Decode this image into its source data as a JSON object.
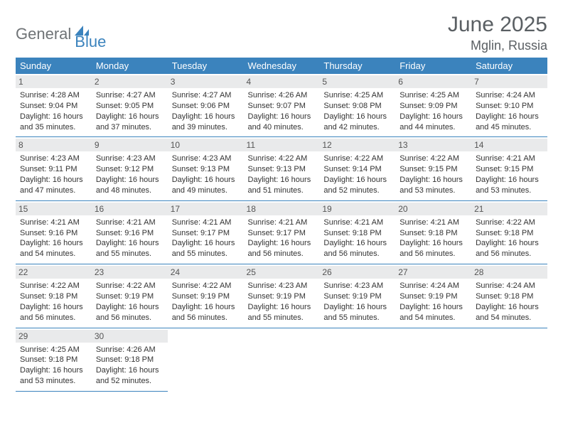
{
  "logo": {
    "part1": "General",
    "part2": "Blue"
  },
  "title": "June 2025",
  "location": "Mglin, Russia",
  "colors": {
    "header_bg": "#3b83bd",
    "header_text": "#ffffff",
    "daynum_bg": "#e9eaeb",
    "border": "#3b83bd",
    "page_bg": "#ffffff",
    "title_color": "#5a5f63",
    "logo_gray": "#6f7376",
    "logo_blue": "#3b83bd",
    "body_text": "#333333"
  },
  "typography": {
    "title_fontsize": 30,
    "location_fontsize": 18,
    "dayheader_fontsize": 13,
    "daynum_fontsize": 12,
    "cell_fontsize": 11
  },
  "day_headers": [
    "Sunday",
    "Monday",
    "Tuesday",
    "Wednesday",
    "Thursday",
    "Friday",
    "Saturday"
  ],
  "weeks": [
    [
      {
        "num": "1",
        "sunrise": "Sunrise: 4:28 AM",
        "sunset": "Sunset: 9:04 PM",
        "daylight1": "Daylight: 16 hours",
        "daylight2": "and 35 minutes."
      },
      {
        "num": "2",
        "sunrise": "Sunrise: 4:27 AM",
        "sunset": "Sunset: 9:05 PM",
        "daylight1": "Daylight: 16 hours",
        "daylight2": "and 37 minutes."
      },
      {
        "num": "3",
        "sunrise": "Sunrise: 4:27 AM",
        "sunset": "Sunset: 9:06 PM",
        "daylight1": "Daylight: 16 hours",
        "daylight2": "and 39 minutes."
      },
      {
        "num": "4",
        "sunrise": "Sunrise: 4:26 AM",
        "sunset": "Sunset: 9:07 PM",
        "daylight1": "Daylight: 16 hours",
        "daylight2": "and 40 minutes."
      },
      {
        "num": "5",
        "sunrise": "Sunrise: 4:25 AM",
        "sunset": "Sunset: 9:08 PM",
        "daylight1": "Daylight: 16 hours",
        "daylight2": "and 42 minutes."
      },
      {
        "num": "6",
        "sunrise": "Sunrise: 4:25 AM",
        "sunset": "Sunset: 9:09 PM",
        "daylight1": "Daylight: 16 hours",
        "daylight2": "and 44 minutes."
      },
      {
        "num": "7",
        "sunrise": "Sunrise: 4:24 AM",
        "sunset": "Sunset: 9:10 PM",
        "daylight1": "Daylight: 16 hours",
        "daylight2": "and 45 minutes."
      }
    ],
    [
      {
        "num": "8",
        "sunrise": "Sunrise: 4:23 AM",
        "sunset": "Sunset: 9:11 PM",
        "daylight1": "Daylight: 16 hours",
        "daylight2": "and 47 minutes."
      },
      {
        "num": "9",
        "sunrise": "Sunrise: 4:23 AM",
        "sunset": "Sunset: 9:12 PM",
        "daylight1": "Daylight: 16 hours",
        "daylight2": "and 48 minutes."
      },
      {
        "num": "10",
        "sunrise": "Sunrise: 4:23 AM",
        "sunset": "Sunset: 9:13 PM",
        "daylight1": "Daylight: 16 hours",
        "daylight2": "and 49 minutes."
      },
      {
        "num": "11",
        "sunrise": "Sunrise: 4:22 AM",
        "sunset": "Sunset: 9:13 PM",
        "daylight1": "Daylight: 16 hours",
        "daylight2": "and 51 minutes."
      },
      {
        "num": "12",
        "sunrise": "Sunrise: 4:22 AM",
        "sunset": "Sunset: 9:14 PM",
        "daylight1": "Daylight: 16 hours",
        "daylight2": "and 52 minutes."
      },
      {
        "num": "13",
        "sunrise": "Sunrise: 4:22 AM",
        "sunset": "Sunset: 9:15 PM",
        "daylight1": "Daylight: 16 hours",
        "daylight2": "and 53 minutes."
      },
      {
        "num": "14",
        "sunrise": "Sunrise: 4:21 AM",
        "sunset": "Sunset: 9:15 PM",
        "daylight1": "Daylight: 16 hours",
        "daylight2": "and 53 minutes."
      }
    ],
    [
      {
        "num": "15",
        "sunrise": "Sunrise: 4:21 AM",
        "sunset": "Sunset: 9:16 PM",
        "daylight1": "Daylight: 16 hours",
        "daylight2": "and 54 minutes."
      },
      {
        "num": "16",
        "sunrise": "Sunrise: 4:21 AM",
        "sunset": "Sunset: 9:16 PM",
        "daylight1": "Daylight: 16 hours",
        "daylight2": "and 55 minutes."
      },
      {
        "num": "17",
        "sunrise": "Sunrise: 4:21 AM",
        "sunset": "Sunset: 9:17 PM",
        "daylight1": "Daylight: 16 hours",
        "daylight2": "and 55 minutes."
      },
      {
        "num": "18",
        "sunrise": "Sunrise: 4:21 AM",
        "sunset": "Sunset: 9:17 PM",
        "daylight1": "Daylight: 16 hours",
        "daylight2": "and 56 minutes."
      },
      {
        "num": "19",
        "sunrise": "Sunrise: 4:21 AM",
        "sunset": "Sunset: 9:18 PM",
        "daylight1": "Daylight: 16 hours",
        "daylight2": "and 56 minutes."
      },
      {
        "num": "20",
        "sunrise": "Sunrise: 4:21 AM",
        "sunset": "Sunset: 9:18 PM",
        "daylight1": "Daylight: 16 hours",
        "daylight2": "and 56 minutes."
      },
      {
        "num": "21",
        "sunrise": "Sunrise: 4:22 AM",
        "sunset": "Sunset: 9:18 PM",
        "daylight1": "Daylight: 16 hours",
        "daylight2": "and 56 minutes."
      }
    ],
    [
      {
        "num": "22",
        "sunrise": "Sunrise: 4:22 AM",
        "sunset": "Sunset: 9:18 PM",
        "daylight1": "Daylight: 16 hours",
        "daylight2": "and 56 minutes."
      },
      {
        "num": "23",
        "sunrise": "Sunrise: 4:22 AM",
        "sunset": "Sunset: 9:19 PM",
        "daylight1": "Daylight: 16 hours",
        "daylight2": "and 56 minutes."
      },
      {
        "num": "24",
        "sunrise": "Sunrise: 4:22 AM",
        "sunset": "Sunset: 9:19 PM",
        "daylight1": "Daylight: 16 hours",
        "daylight2": "and 56 minutes."
      },
      {
        "num": "25",
        "sunrise": "Sunrise: 4:23 AM",
        "sunset": "Sunset: 9:19 PM",
        "daylight1": "Daylight: 16 hours",
        "daylight2": "and 55 minutes."
      },
      {
        "num": "26",
        "sunrise": "Sunrise: 4:23 AM",
        "sunset": "Sunset: 9:19 PM",
        "daylight1": "Daylight: 16 hours",
        "daylight2": "and 55 minutes."
      },
      {
        "num": "27",
        "sunrise": "Sunrise: 4:24 AM",
        "sunset": "Sunset: 9:19 PM",
        "daylight1": "Daylight: 16 hours",
        "daylight2": "and 54 minutes."
      },
      {
        "num": "28",
        "sunrise": "Sunrise: 4:24 AM",
        "sunset": "Sunset: 9:18 PM",
        "daylight1": "Daylight: 16 hours",
        "daylight2": "and 54 minutes."
      }
    ],
    [
      {
        "num": "29",
        "sunrise": "Sunrise: 4:25 AM",
        "sunset": "Sunset: 9:18 PM",
        "daylight1": "Daylight: 16 hours",
        "daylight2": "and 53 minutes."
      },
      {
        "num": "30",
        "sunrise": "Sunrise: 4:26 AM",
        "sunset": "Sunset: 9:18 PM",
        "daylight1": "Daylight: 16 hours",
        "daylight2": "and 52 minutes."
      },
      null,
      null,
      null,
      null,
      null
    ]
  ]
}
